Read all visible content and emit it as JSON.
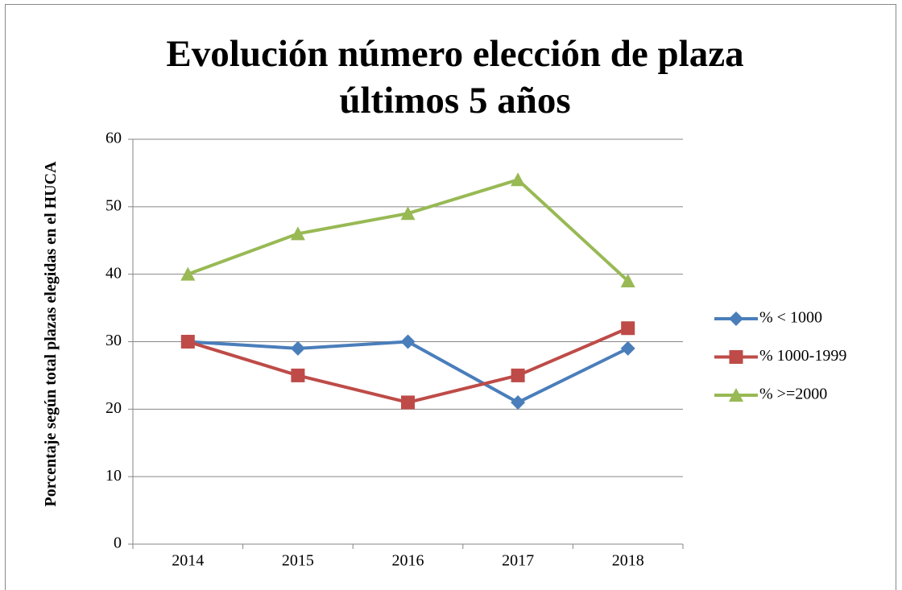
{
  "chart_data": {
    "type": "line",
    "title": "Evolución número elección de plaza últimos 5 años",
    "ylabel": "Porcentaje según total plazas elegidas en el HUCA",
    "categories": [
      "2014",
      "2015",
      "2016",
      "2017",
      "2018"
    ],
    "series": [
      {
        "name": "% < 1000",
        "color": "#4a7ebb",
        "marker": "diamond",
        "values": [
          30,
          29,
          30,
          21,
          29
        ]
      },
      {
        "name": "% 1000-1999",
        "color": "#be4b48",
        "marker": "square",
        "values": [
          30,
          25,
          21,
          25,
          32
        ]
      },
      {
        "name": "% >=2000",
        "color": "#98b954",
        "marker": "triangle",
        "values": [
          40,
          46,
          49,
          54,
          39
        ]
      }
    ],
    "ylim": [
      0,
      60
    ],
    "yticks": [
      0,
      10,
      20,
      30,
      40,
      50,
      60
    ],
    "grid": true,
    "legend": "right"
  }
}
